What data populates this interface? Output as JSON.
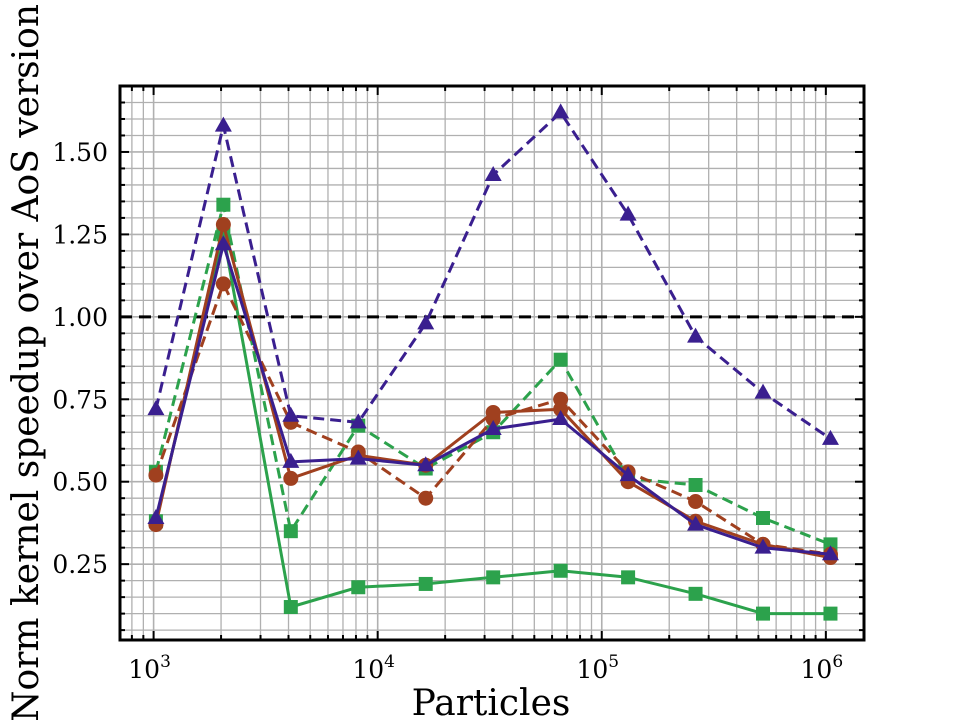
{
  "chart_data": {
    "type": "line",
    "xlabel": "Particles",
    "ylabel": "Norm kernel speedup over AoS version",
    "xscale": "log",
    "xlim": [
      708,
      1480000
    ],
    "ylim": [
      0.02,
      1.7
    ],
    "grid": "major and minor",
    "reference_line": {
      "y": 1.0,
      "style": "dashed",
      "color": "#000000"
    },
    "x_ticks": [
      {
        "base": "10",
        "exp": "3",
        "value": 1000
      },
      {
        "base": "10",
        "exp": "4",
        "value": 10000
      },
      {
        "base": "10",
        "exp": "5",
        "value": 100000
      },
      {
        "base": "10",
        "exp": "6",
        "value": 1000000
      }
    ],
    "y_ticks": [
      {
        "label": "0.25",
        "value": 0.25
      },
      {
        "label": "0.50",
        "value": 0.5
      },
      {
        "label": "0.75",
        "value": 0.75
      },
      {
        "label": "1.00",
        "value": 1.0
      },
      {
        "label": "1.25",
        "value": 1.25
      },
      {
        "label": "1.50",
        "value": 1.5
      }
    ],
    "x": [
      1024,
      2048,
      4096,
      8192,
      16384,
      32768,
      65536,
      131072,
      262144,
      524288,
      1048576
    ],
    "series": [
      {
        "color": "#2ca24c",
        "dash": "dashed",
        "marker": "square",
        "values": [
          0.53,
          1.34,
          0.35,
          0.67,
          0.54,
          0.65,
          0.87,
          0.51,
          0.49,
          0.39,
          0.31
        ]
      },
      {
        "color": "#2ca24c",
        "dash": "solid",
        "marker": "square",
        "values": [
          0.38,
          1.25,
          0.12,
          0.18,
          0.19,
          0.21,
          0.23,
          0.21,
          0.16,
          0.1,
          0.1
        ]
      },
      {
        "color": "#a0401f",
        "dash": "dashed",
        "marker": "circle",
        "values": [
          0.52,
          1.1,
          0.68,
          0.59,
          0.45,
          0.69,
          0.75,
          0.53,
          0.44,
          0.31,
          0.28
        ]
      },
      {
        "color": "#a0401f",
        "dash": "solid",
        "marker": "circle",
        "values": [
          0.37,
          1.28,
          0.51,
          0.58,
          0.55,
          0.71,
          0.72,
          0.5,
          0.38,
          0.31,
          0.27
        ]
      },
      {
        "color": "#3a1f8f",
        "dash": "dashed",
        "marker": "triangle",
        "values": [
          0.72,
          1.58,
          0.7,
          0.68,
          0.98,
          1.43,
          1.62,
          1.31,
          0.94,
          0.77,
          0.63
        ]
      },
      {
        "color": "#3a1f8f",
        "dash": "solid",
        "marker": "triangle",
        "values": [
          0.39,
          1.22,
          0.56,
          0.57,
          0.55,
          0.66,
          0.69,
          0.52,
          0.37,
          0.3,
          0.28
        ]
      }
    ]
  }
}
